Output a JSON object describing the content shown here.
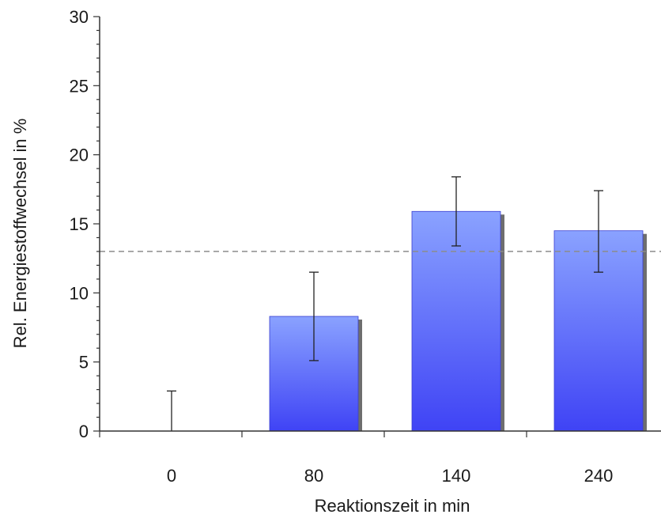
{
  "chart_data": {
    "type": "bar",
    "title": "",
    "xlabel": "Reaktionszeit in min",
    "ylabel": "Rel. Energiestoffwechsel in %",
    "categories": [
      "0",
      "80",
      "140",
      "240"
    ],
    "values": [
      0,
      8.3,
      15.9,
      14.5
    ],
    "error_low": [
      0,
      5.1,
      13.4,
      11.5
    ],
    "error_high": [
      2.9,
      11.5,
      18.4,
      17.4
    ],
    "ylim": [
      0,
      30
    ],
    "yticks": [
      "0",
      "5",
      "10",
      "15",
      "20",
      "25",
      "30"
    ],
    "reference_line": 13.0,
    "grid": false,
    "colors": {
      "bar_top": "#8aa2ff",
      "bar_bottom": "#3f43f5",
      "bar_shadow": "#555555",
      "reference_line": "#8c8c8c",
      "axis": "#333333",
      "error_bar": "#222222"
    }
  }
}
